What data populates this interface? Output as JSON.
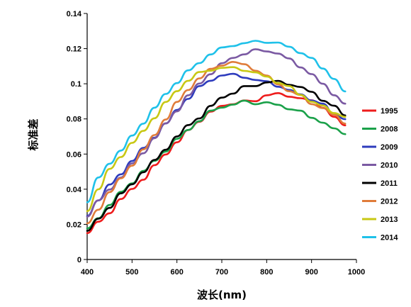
{
  "chart_data": {
    "type": "line",
    "xlabel": "波长(nm)",
    "ylabel": "标准差",
    "xlim": [
      400,
      1000
    ],
    "ylim": [
      0,
      0.14
    ],
    "x_ticks": [
      "400",
      "500",
      "600",
      "700",
      "800",
      "900",
      "1000"
    ],
    "y_ticks": [
      "0",
      "0.02",
      "0.04",
      "0.06",
      "0.08",
      "0.1",
      "0.12",
      "0.14"
    ],
    "grid": false,
    "legend_position": "right",
    "x": [
      400,
      425,
      450,
      475,
      500,
      525,
      550,
      575,
      600,
      625,
      650,
      675,
      700,
      725,
      750,
      775,
      800,
      825,
      850,
      875,
      900,
      925,
      950,
      975
    ],
    "series": [
      {
        "name": "1995",
        "color": "#ee1c1c",
        "values": [
          0.015,
          0.021,
          0.027,
          0.034,
          0.04,
          0.046,
          0.053,
          0.06,
          0.067,
          0.073,
          0.079,
          0.084,
          0.087,
          0.089,
          0.09,
          0.09,
          0.094,
          0.094,
          0.093,
          0.092,
          0.09,
          0.087,
          0.081,
          0.076
        ]
      },
      {
        "name": "2008",
        "color": "#1ba14a",
        "values": [
          0.017,
          0.024,
          0.031,
          0.038,
          0.044,
          0.05,
          0.056,
          0.062,
          0.068,
          0.074,
          0.079,
          0.084,
          0.087,
          0.088,
          0.09,
          0.089,
          0.089,
          0.088,
          0.086,
          0.084,
          0.081,
          0.078,
          0.074,
          0.072
        ]
      },
      {
        "name": "2009",
        "color": "#2e3cbd",
        "values": [
          0.025,
          0.034,
          0.042,
          0.049,
          0.056,
          0.063,
          0.07,
          0.077,
          0.085,
          0.092,
          0.098,
          0.102,
          0.105,
          0.105,
          0.104,
          0.102,
          0.101,
          0.099,
          0.096,
          0.094,
          0.091,
          0.088,
          0.083,
          0.08
        ]
      },
      {
        "name": "2010",
        "color": "#7b5aa3",
        "values": [
          0.025,
          0.033,
          0.04,
          0.047,
          0.054,
          0.061,
          0.069,
          0.077,
          0.085,
          0.093,
          0.1,
          0.106,
          0.111,
          0.115,
          0.117,
          0.119,
          0.119,
          0.117,
          0.114,
          0.11,
          0.105,
          0.1,
          0.094,
          0.088
        ]
      },
      {
        "name": "2011",
        "color": "#000000",
        "values": [
          0.016,
          0.023,
          0.03,
          0.037,
          0.043,
          0.05,
          0.056,
          0.063,
          0.07,
          0.076,
          0.081,
          0.087,
          0.092,
          0.095,
          0.098,
          0.099,
          0.101,
          0.101,
          0.1,
          0.098,
          0.095,
          0.091,
          0.087,
          0.082
        ]
      },
      {
        "name": "2012",
        "color": "#e07c3a",
        "values": [
          0.02,
          0.029,
          0.038,
          0.046,
          0.054,
          0.062,
          0.071,
          0.08,
          0.089,
          0.097,
          0.103,
          0.108,
          0.111,
          0.112,
          0.111,
          0.108,
          0.104,
          0.1,
          0.096,
          0.093,
          0.089,
          0.086,
          0.082,
          0.078
        ]
      },
      {
        "name": "2013",
        "color": "#c8c814",
        "values": [
          0.028,
          0.04,
          0.051,
          0.059,
          0.066,
          0.073,
          0.081,
          0.089,
          0.096,
          0.102,
          0.106,
          0.108,
          0.109,
          0.109,
          0.108,
          0.106,
          0.104,
          0.101,
          0.098,
          0.094,
          0.09,
          0.087,
          0.084,
          0.081
        ]
      },
      {
        "name": "2014",
        "color": "#1fc1e9",
        "values": [
          0.033,
          0.046,
          0.055,
          0.062,
          0.07,
          0.078,
          0.086,
          0.094,
          0.101,
          0.107,
          0.112,
          0.117,
          0.12,
          0.122,
          0.123,
          0.124,
          0.124,
          0.123,
          0.121,
          0.118,
          0.114,
          0.109,
          0.103,
          0.095
        ]
      }
    ]
  }
}
